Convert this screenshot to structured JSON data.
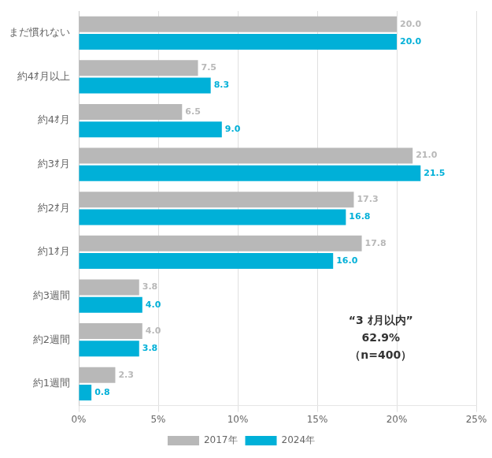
{
  "chart_data": {
    "type": "bar",
    "orientation": "horizontal",
    "categories": [
      "まだ慣れない",
      "約4ｵ月以上",
      "約4ｵ月",
      "約3ｵ月",
      "約2ｵ月",
      "約1ｵ月",
      "約3週間",
      "約2週間",
      "約1週間"
    ],
    "series": [
      {
        "name": "2017年",
        "color": "#b8b8b8",
        "values": [
          20.0,
          7.5,
          6.5,
          21.0,
          17.3,
          17.8,
          3.8,
          4.0,
          2.3
        ],
        "value_labels": [
          "20.0",
          "7.5",
          "6.5",
          "21.0",
          "17.3",
          "17.8",
          "3.8",
          "4.0",
          "2.3"
        ]
      },
      {
        "name": "2024年",
        "color": "#00b0d8",
        "values": [
          20.0,
          8.3,
          9.0,
          21.5,
          16.8,
          16.0,
          4.0,
          3.8,
          0.8
        ],
        "value_labels": [
          "20.0",
          "8.3",
          "9.0",
          "21.5",
          "16.8",
          "16.0",
          "4.0",
          "3.8",
          "0.8"
        ]
      }
    ],
    "xlim": [
      0,
      25
    ],
    "xticks": [
      {
        "value": 0,
        "label": "0%"
      },
      {
        "value": 5,
        "label": "5%"
      },
      {
        "value": 10,
        "label": "10%"
      },
      {
        "value": 15,
        "label": "15%"
      },
      {
        "value": 20,
        "label": "20%"
      },
      {
        "value": 25,
        "label": "25%"
      }
    ],
    "grid": true,
    "legend": "bottom",
    "data_labels": true,
    "annotations": [
      "“3 ｵ月以内”",
      "62.9%",
      "（n=400）"
    ]
  }
}
